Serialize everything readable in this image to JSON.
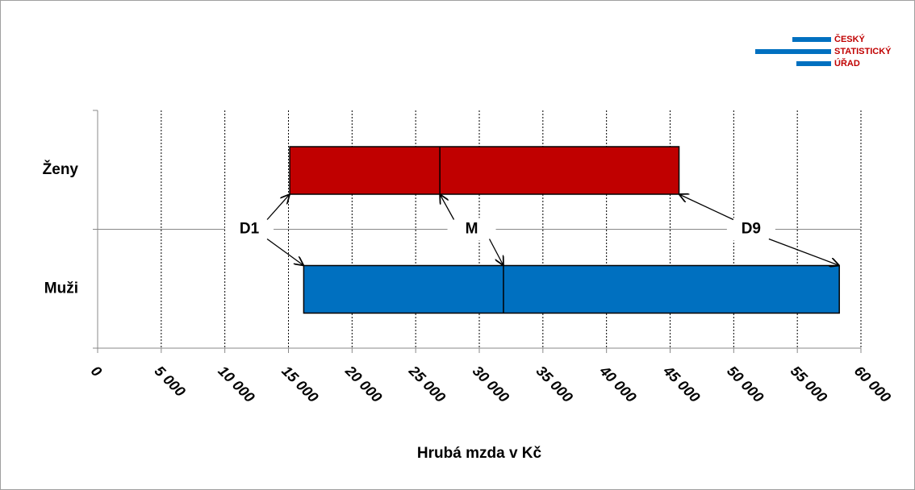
{
  "chart_data": {
    "type": "range",
    "logo": [
      "ČESKÝ",
      "STATISTICKÝ",
      "ÚŘAD"
    ],
    "xlabel": "Hrubá mzda v Kč",
    "categories": [
      "Ženy",
      "Muži"
    ],
    "colors": [
      "#c00000",
      "#0070c0"
    ],
    "series": [
      {
        "name": "D1",
        "values": [
          15100,
          16200
        ]
      },
      {
        "name": "M",
        "values": [
          26900,
          31900
        ]
      },
      {
        "name": "D9",
        "values": [
          45700,
          58300
        ]
      }
    ],
    "xlim": [
      0,
      60000
    ],
    "xticks": [
      0,
      {
        "value": 5000,
        "label": "5 000"
      },
      {
        "value": 10000,
        "label": "10 000"
      },
      {
        "value": 15000,
        "label": "15 000"
      },
      {
        "value": 20000,
        "label": "20 000"
      },
      {
        "value": 25000,
        "label": "25 000"
      },
      {
        "value": 30000,
        "label": "30 000"
      },
      {
        "value": 35000,
        "label": "35 000"
      },
      {
        "value": 40000,
        "label": "40 000"
      },
      {
        "value": 45000,
        "label": "45 000"
      },
      {
        "value": 50000,
        "label": "50 000"
      },
      {
        "value": 55000,
        "label": "55 000"
      },
      {
        "value": 60000,
        "label": "60 000"
      }
    ],
    "grid": true
  }
}
